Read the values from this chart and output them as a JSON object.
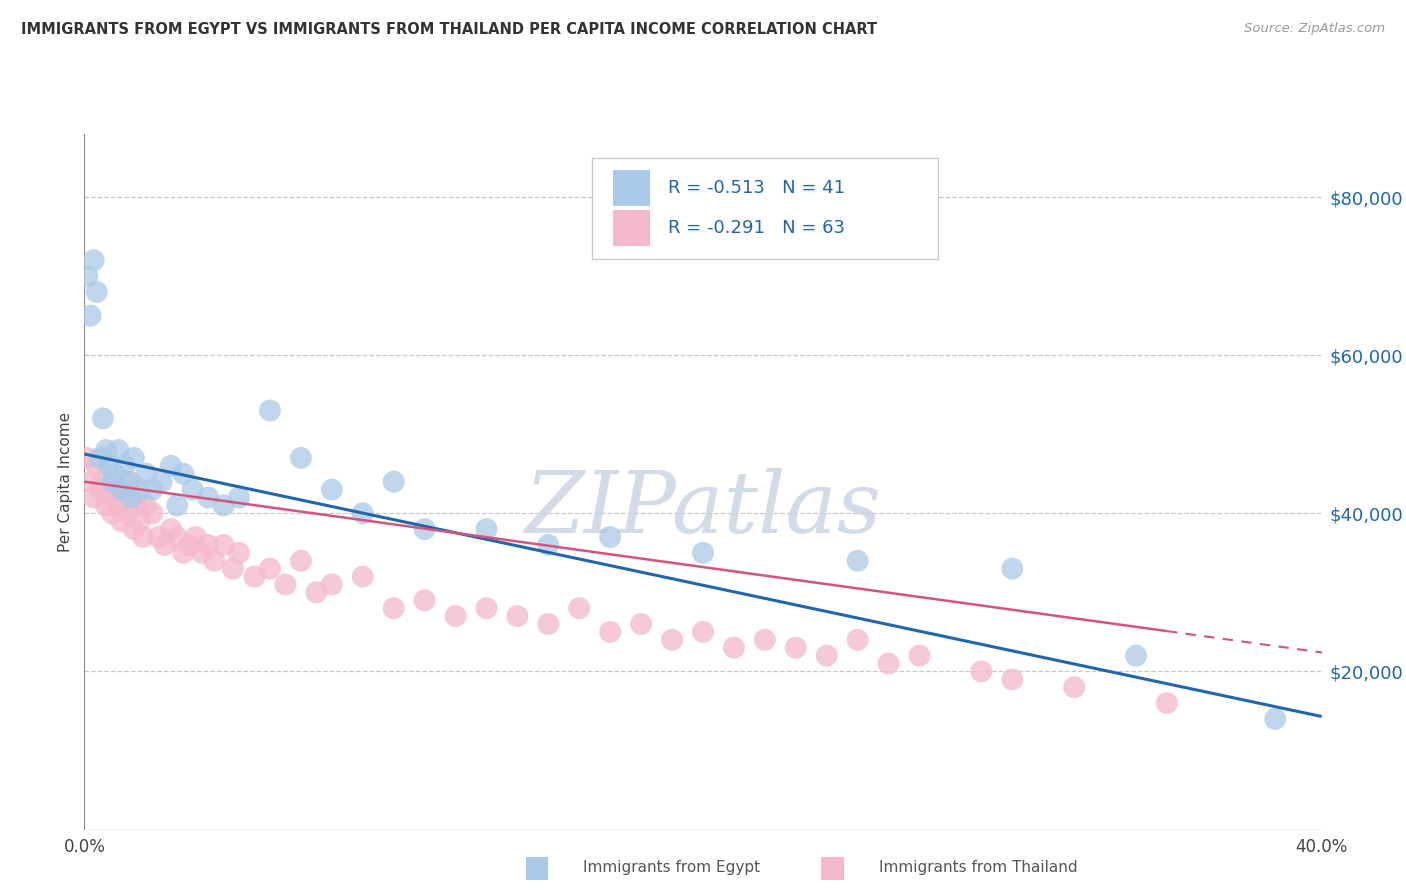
{
  "title": "IMMIGRANTS FROM EGYPT VS IMMIGRANTS FROM THAILAND PER CAPITA INCOME CORRELATION CHART",
  "source": "Source: ZipAtlas.com",
  "ylabel": "Per Capita Income",
  "egypt_R": -0.513,
  "egypt_N": 41,
  "thailand_R": -0.291,
  "thailand_N": 63,
  "egypt_color": "#aac9e8",
  "thailand_color": "#f4b8cb",
  "egypt_line_color": "#2166ac",
  "thailand_line_color": "#d6547a",
  "xlim": [
    0.0,
    0.4
  ],
  "ylim": [
    0,
    88000
  ],
  "x_ticks": [
    0.0,
    0.05,
    0.1,
    0.15,
    0.2,
    0.25,
    0.3,
    0.35,
    0.4
  ],
  "y_ticks": [
    0,
    20000,
    40000,
    60000,
    80000
  ],
  "egypt_x": [
    0.001,
    0.002,
    0.003,
    0.004,
    0.005,
    0.006,
    0.007,
    0.008,
    0.009,
    0.01,
    0.011,
    0.012,
    0.013,
    0.014,
    0.015,
    0.016,
    0.018,
    0.02,
    0.022,
    0.025,
    0.028,
    0.03,
    0.032,
    0.035,
    0.04,
    0.045,
    0.05,
    0.06,
    0.07,
    0.08,
    0.09,
    0.1,
    0.11,
    0.13,
    0.15,
    0.17,
    0.2,
    0.25,
    0.3,
    0.34,
    0.385
  ],
  "egypt_y": [
    70000,
    65000,
    72000,
    68000,
    47000,
    52000,
    48000,
    46000,
    44000,
    45000,
    48000,
    43000,
    46000,
    44000,
    42000,
    47000,
    43000,
    45000,
    43000,
    44000,
    46000,
    41000,
    45000,
    43000,
    42000,
    41000,
    42000,
    53000,
    47000,
    43000,
    40000,
    44000,
    38000,
    38000,
    36000,
    37000,
    35000,
    34000,
    33000,
    22000,
    14000
  ],
  "thailand_x": [
    0.001,
    0.002,
    0.003,
    0.004,
    0.005,
    0.006,
    0.007,
    0.008,
    0.009,
    0.01,
    0.011,
    0.012,
    0.013,
    0.014,
    0.015,
    0.016,
    0.017,
    0.018,
    0.019,
    0.02,
    0.022,
    0.024,
    0.026,
    0.028,
    0.03,
    0.032,
    0.034,
    0.036,
    0.038,
    0.04,
    0.042,
    0.045,
    0.048,
    0.05,
    0.055,
    0.06,
    0.065,
    0.07,
    0.075,
    0.08,
    0.09,
    0.1,
    0.11,
    0.12,
    0.13,
    0.14,
    0.15,
    0.16,
    0.17,
    0.18,
    0.19,
    0.2,
    0.21,
    0.22,
    0.23,
    0.24,
    0.25,
    0.26,
    0.27,
    0.29,
    0.3,
    0.32,
    0.35
  ],
  "thailand_y": [
    47000,
    44000,
    42000,
    46000,
    43000,
    44000,
    41000,
    42000,
    40000,
    43000,
    41000,
    39000,
    42000,
    40000,
    44000,
    38000,
    41000,
    39000,
    37000,
    41000,
    40000,
    37000,
    36000,
    38000,
    37000,
    35000,
    36000,
    37000,
    35000,
    36000,
    34000,
    36000,
    33000,
    35000,
    32000,
    33000,
    31000,
    34000,
    30000,
    31000,
    32000,
    28000,
    29000,
    27000,
    28000,
    27000,
    26000,
    28000,
    25000,
    26000,
    24000,
    25000,
    23000,
    24000,
    23000,
    22000,
    24000,
    21000,
    22000,
    20000,
    19000,
    18000,
    16000
  ],
  "watermark_text": "ZIPatlas",
  "background_color": "#ffffff",
  "grid_color": "#c8c8c8",
  "legend_bottom": [
    "Immigrants from Egypt",
    "Immigrants from Thailand"
  ]
}
